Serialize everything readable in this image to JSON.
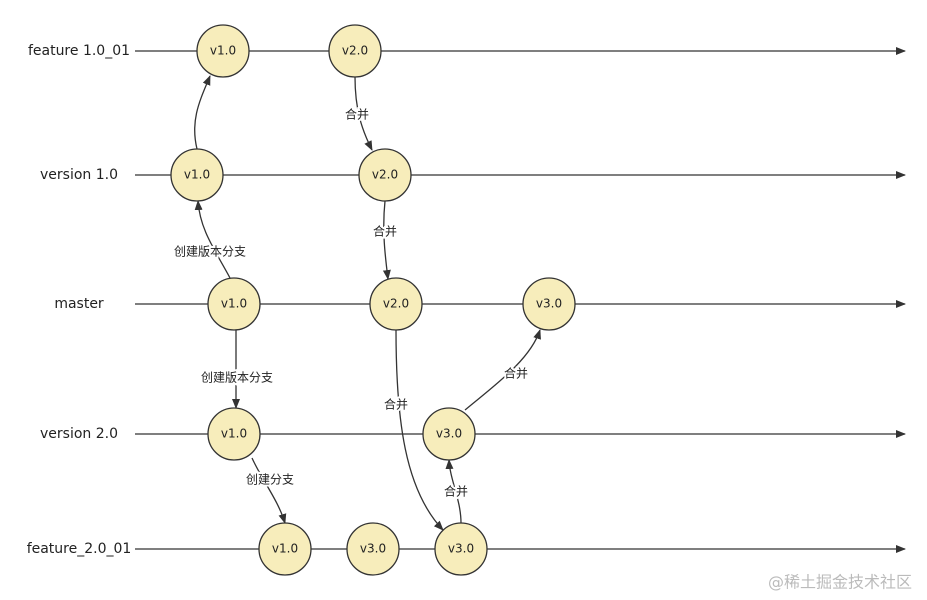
{
  "lanes": [
    {
      "label": "feature 1.0_01"
    },
    {
      "label": "version 1.0"
    },
    {
      "label": "master"
    },
    {
      "label": "version 2.0"
    },
    {
      "label": "feature_2.0_01"
    }
  ],
  "nodes": [
    {
      "label": "v1.0"
    },
    {
      "label": "v2.0"
    },
    {
      "label": "v1.0"
    },
    {
      "label": "v2.0"
    },
    {
      "label": "v1.0"
    },
    {
      "label": "v2.0"
    },
    {
      "label": "v3.0"
    },
    {
      "label": "v1.0"
    },
    {
      "label": "v3.0"
    },
    {
      "label": "v1.0"
    },
    {
      "label": "v3.0"
    },
    {
      "label": "v3.0"
    }
  ],
  "edges": [
    {
      "label": "创建版本分支"
    },
    {
      "label": "合并"
    },
    {
      "label": "合并"
    },
    {
      "label": "创建版本分支"
    },
    {
      "label": "创建分支"
    },
    {
      "label": "合并"
    },
    {
      "label": "合并"
    },
    {
      "label": "合并"
    }
  ],
  "watermark": "@稀土掘金技术社区"
}
